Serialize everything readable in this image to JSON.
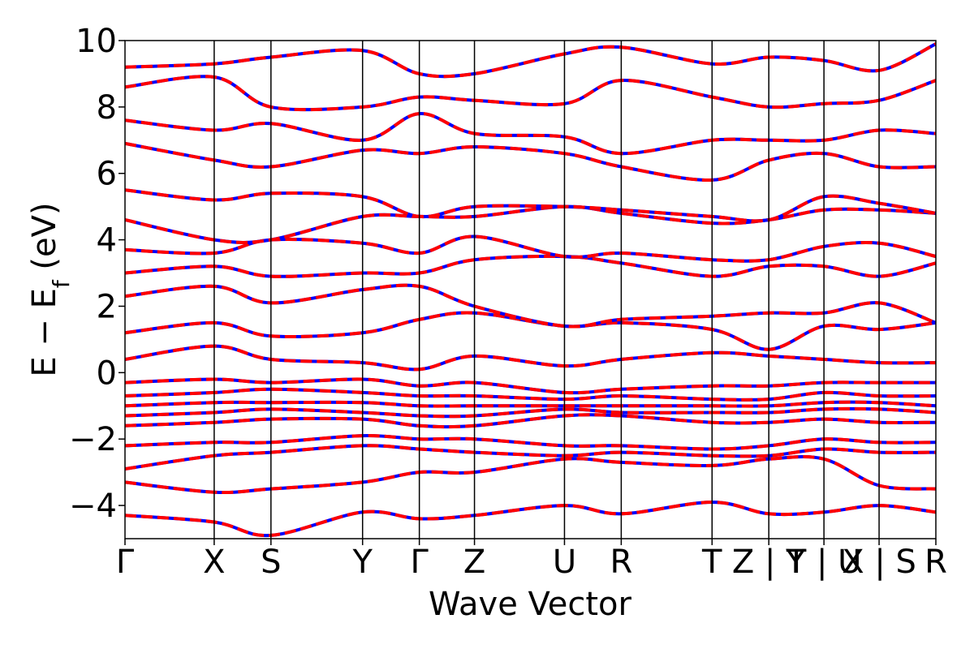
{
  "chart_data": {
    "type": "line",
    "title": "",
    "xlabel": "Wave Vector",
    "ylabel": "E − E_f (eV)",
    "ylabel_main": "E − E",
    "ylabel_sub": "f",
    "ylabel_tail": " (eV)",
    "ylim": [
      -5,
      10
    ],
    "yticks": [
      -4,
      -2,
      0,
      2,
      4,
      6,
      8,
      10
    ],
    "ytick_labels": [
      "−4",
      "−2",
      "0",
      "2",
      "4",
      "6",
      "8",
      "10"
    ],
    "grid": false,
    "legend": "none",
    "x_path": [
      {
        "label": "Γ",
        "x": 0.0
      },
      {
        "label": "X",
        "x": 0.11
      },
      {
        "label": "S",
        "x": 0.18
      },
      {
        "label": "Y",
        "x": 0.293
      },
      {
        "label": "Γ",
        "x": 0.363
      },
      {
        "label": "Z",
        "x": 0.431
      },
      {
        "label": "U",
        "x": 0.542
      },
      {
        "label": "R",
        "x": 0.612
      },
      {
        "label": "T",
        "x": 0.724
      },
      {
        "label": "Z | Y",
        "x": 0.794
      },
      {
        "label": "T | U",
        "x": 0.862
      },
      {
        "label": "X | S",
        "x": 0.93
      },
      {
        "label": "R",
        "x": 1.0
      }
    ],
    "series_colors": [
      "#ff0000",
      "#0000ff"
    ],
    "bands": [
      {
        "name": "",
        "values": [
          -4.3,
          -4.5,
          -4.9,
          -4.2,
          -4.4,
          -4.3,
          -4.0,
          -4.25,
          -3.9,
          -4.25,
          -4.2,
          -4.0,
          -4.2
        ]
      },
      {
        "name": "",
        "values": [
          -3.3,
          -3.6,
          -3.5,
          -3.3,
          -3.0,
          -3.0,
          -2.6,
          -2.7,
          -2.8,
          -2.6,
          -2.6,
          -3.4,
          -3.5
        ]
      },
      {
        "name": "",
        "values": [
          -2.9,
          -2.5,
          -2.4,
          -2.2,
          -2.3,
          -2.4,
          -2.5,
          -2.4,
          -2.5,
          -2.5,
          -2.3,
          -2.4,
          -2.4
        ]
      },
      {
        "name": "",
        "values": [
          -2.2,
          -2.1,
          -2.1,
          -1.9,
          -2.0,
          -2.0,
          -2.2,
          -2.2,
          -2.3,
          -2.2,
          -2.0,
          -2.1,
          -2.1
        ]
      },
      {
        "name": "",
        "values": [
          -1.6,
          -1.5,
          -1.4,
          -1.4,
          -1.6,
          -1.6,
          -1.3,
          -1.3,
          -1.5,
          -1.5,
          -1.4,
          -1.5,
          -1.5
        ]
      },
      {
        "name": "",
        "values": [
          -1.3,
          -1.2,
          -1.1,
          -1.2,
          -1.3,
          -1.3,
          -1.1,
          -1.2,
          -1.2,
          -1.2,
          -1.1,
          -1.1,
          -1.2
        ]
      },
      {
        "name": "",
        "values": [
          -1.0,
          -0.9,
          -0.9,
          -0.9,
          -1.0,
          -1.0,
          -1.0,
          -1.0,
          -1.0,
          -1.0,
          -0.9,
          -0.9,
          -1.0
        ]
      },
      {
        "name": "",
        "values": [
          -0.7,
          -0.6,
          -0.5,
          -0.6,
          -0.7,
          -0.7,
          -0.8,
          -0.7,
          -0.8,
          -0.8,
          -0.6,
          -0.7,
          -0.7
        ]
      },
      {
        "name": "",
        "values": [
          -0.3,
          -0.2,
          -0.3,
          -0.2,
          -0.4,
          -0.3,
          -0.6,
          -0.5,
          -0.4,
          -0.4,
          -0.3,
          -0.3,
          -0.3
        ]
      },
      {
        "name": "",
        "values": [
          0.4,
          0.8,
          0.4,
          0.3,
          0.1,
          0.5,
          0.2,
          0.4,
          0.6,
          0.5,
          0.4,
          0.3,
          0.3
        ]
      },
      {
        "name": "",
        "values": [
          1.2,
          1.5,
          1.1,
          1.2,
          1.6,
          1.8,
          1.4,
          1.5,
          1.3,
          0.7,
          1.4,
          1.3,
          1.5
        ]
      },
      {
        "name": "",
        "values": [
          2.3,
          2.6,
          2.1,
          2.5,
          2.6,
          2.0,
          1.4,
          1.6,
          1.7,
          1.8,
          1.8,
          2.1,
          1.5
        ]
      },
      {
        "name": "",
        "values": [
          3.0,
          3.2,
          2.9,
          3.0,
          3.0,
          3.4,
          3.5,
          3.3,
          2.9,
          3.2,
          3.2,
          2.9,
          3.3
        ]
      },
      {
        "name": "",
        "values": [
          3.7,
          3.6,
          4.0,
          3.9,
          3.6,
          4.1,
          3.5,
          3.6,
          3.4,
          3.4,
          3.8,
          3.9,
          3.5
        ]
      },
      {
        "name": "",
        "values": [
          4.6,
          4.0,
          4.0,
          4.7,
          4.7,
          4.7,
          5.0,
          4.8,
          4.5,
          4.6,
          4.9,
          4.9,
          4.8
        ]
      },
      {
        "name": "",
        "values": [
          5.5,
          5.2,
          5.4,
          5.3,
          4.7,
          5.0,
          5.0,
          4.9,
          4.7,
          4.6,
          5.3,
          5.1,
          4.8
        ]
      },
      {
        "name": "",
        "values": [
          6.9,
          6.4,
          6.2,
          6.7,
          6.6,
          6.8,
          6.6,
          6.2,
          5.8,
          6.4,
          6.6,
          6.2,
          6.2
        ]
      },
      {
        "name": "",
        "values": [
          7.6,
          7.3,
          7.5,
          7.0,
          7.8,
          7.2,
          7.1,
          6.6,
          7.0,
          7.0,
          7.0,
          7.3,
          7.2
        ]
      },
      {
        "name": "",
        "values": [
          8.6,
          8.9,
          8.0,
          8.0,
          8.3,
          8.2,
          8.1,
          8.8,
          8.3,
          8.0,
          8.1,
          8.2,
          8.8
        ]
      },
      {
        "name": "",
        "values": [
          9.2,
          9.3,
          9.5,
          9.7,
          9.0,
          9.0,
          9.6,
          9.8,
          9.3,
          9.5,
          9.4,
          9.1,
          9.9
        ]
      }
    ]
  }
}
